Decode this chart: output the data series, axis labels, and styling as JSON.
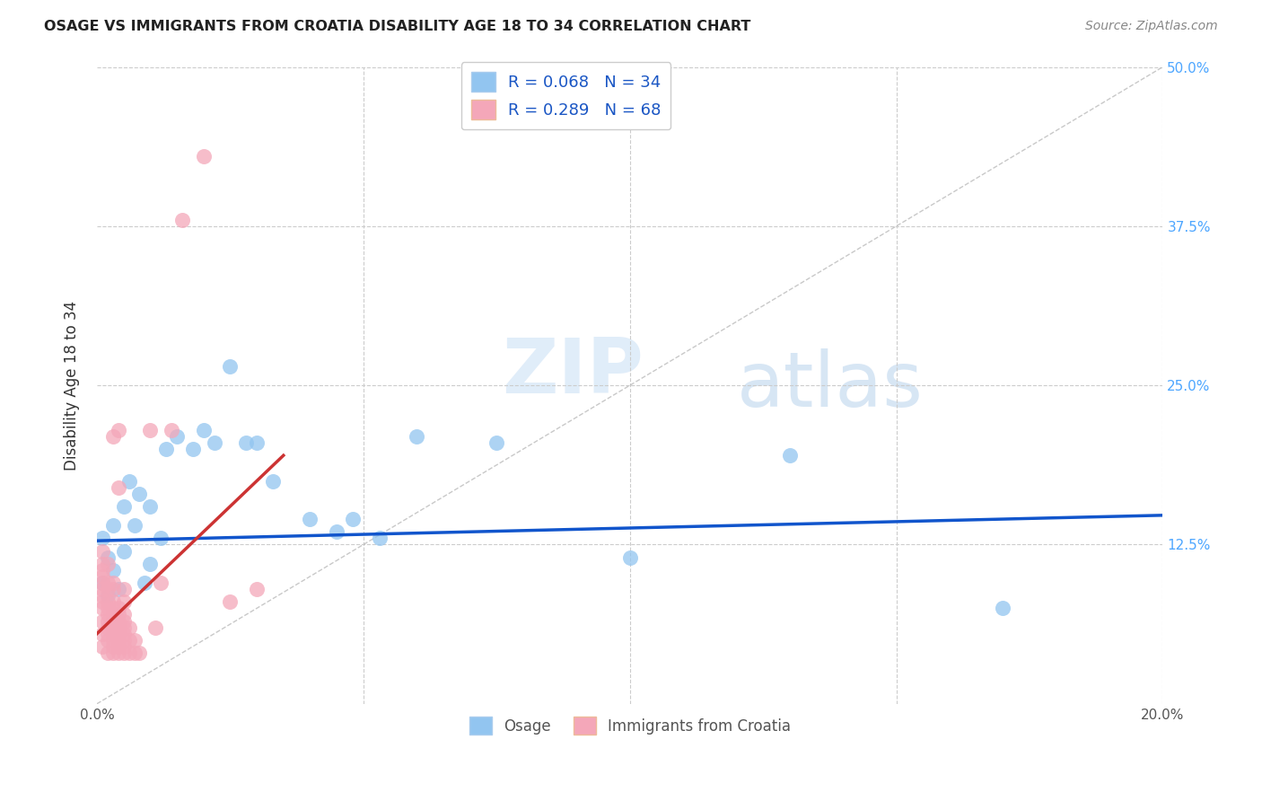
{
  "title": "OSAGE VS IMMIGRANTS FROM CROATIA DISABILITY AGE 18 TO 34 CORRELATION CHART",
  "source": "Source: ZipAtlas.com",
  "ylabel": "Disability Age 18 to 34",
  "legend_r": [
    "R = 0.068",
    "R = 0.289"
  ],
  "legend_n": [
    "N = 34",
    "N = 68"
  ],
  "xlim": [
    0,
    0.2
  ],
  "ylim": [
    0,
    0.5
  ],
  "blue_color": "#92c5f0",
  "pink_color": "#f4a7b9",
  "trend_blue": "#1155cc",
  "trend_pink": "#cc3333",
  "watermark_zip": "ZIP",
  "watermark_atlas": "atlas",
  "osage_x": [
    0.001,
    0.001,
    0.002,
    0.002,
    0.003,
    0.003,
    0.004,
    0.005,
    0.005,
    0.006,
    0.007,
    0.008,
    0.009,
    0.01,
    0.01,
    0.012,
    0.013,
    0.015,
    0.018,
    0.02,
    0.022,
    0.025,
    0.028,
    0.03,
    0.033,
    0.04,
    0.045,
    0.048,
    0.053,
    0.06,
    0.075,
    0.1,
    0.13,
    0.17
  ],
  "osage_y": [
    0.13,
    0.095,
    0.115,
    0.085,
    0.14,
    0.105,
    0.09,
    0.155,
    0.12,
    0.175,
    0.14,
    0.165,
    0.095,
    0.155,
    0.11,
    0.13,
    0.2,
    0.21,
    0.2,
    0.215,
    0.205,
    0.265,
    0.205,
    0.205,
    0.175,
    0.145,
    0.135,
    0.145,
    0.13,
    0.21,
    0.205,
    0.115,
    0.195,
    0.075
  ],
  "croatia_x": [
    0.001,
    0.001,
    0.001,
    0.001,
    0.001,
    0.001,
    0.001,
    0.001,
    0.001,
    0.001,
    0.001,
    0.001,
    0.002,
    0.002,
    0.002,
    0.002,
    0.002,
    0.002,
    0.002,
    0.002,
    0.002,
    0.002,
    0.002,
    0.003,
    0.003,
    0.003,
    0.003,
    0.003,
    0.003,
    0.003,
    0.003,
    0.003,
    0.003,
    0.003,
    0.003,
    0.004,
    0.004,
    0.004,
    0.004,
    0.004,
    0.004,
    0.004,
    0.004,
    0.004,
    0.004,
    0.005,
    0.005,
    0.005,
    0.005,
    0.005,
    0.005,
    0.005,
    0.005,
    0.005,
    0.006,
    0.006,
    0.006,
    0.007,
    0.007,
    0.008,
    0.01,
    0.011,
    0.012,
    0.014,
    0.016,
    0.02,
    0.025,
    0.03
  ],
  "croatia_y": [
    0.045,
    0.055,
    0.065,
    0.075,
    0.08,
    0.085,
    0.09,
    0.095,
    0.1,
    0.105,
    0.11,
    0.12,
    0.04,
    0.05,
    0.055,
    0.06,
    0.065,
    0.07,
    0.075,
    0.08,
    0.09,
    0.095,
    0.11,
    0.04,
    0.045,
    0.05,
    0.055,
    0.06,
    0.065,
    0.07,
    0.075,
    0.08,
    0.09,
    0.095,
    0.21,
    0.04,
    0.045,
    0.05,
    0.055,
    0.06,
    0.065,
    0.07,
    0.075,
    0.17,
    0.215,
    0.04,
    0.045,
    0.05,
    0.055,
    0.06,
    0.065,
    0.07,
    0.08,
    0.09,
    0.04,
    0.05,
    0.06,
    0.04,
    0.05,
    0.04,
    0.215,
    0.06,
    0.095,
    0.215,
    0.38,
    0.43,
    0.08,
    0.09
  ],
  "blue_trend_x": [
    0.0,
    0.2
  ],
  "blue_trend_y": [
    0.128,
    0.148
  ],
  "pink_trend_x": [
    0.0,
    0.04
  ],
  "pink_trend_y": [
    0.055,
    0.215
  ]
}
